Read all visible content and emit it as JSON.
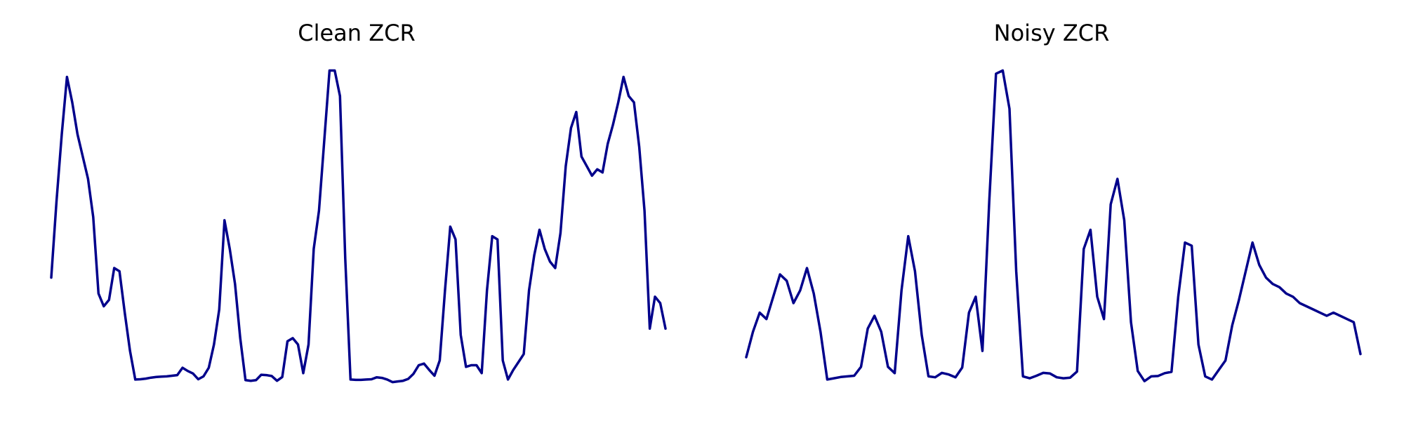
{
  "chart_data": [
    {
      "type": "line",
      "title": "Clean ZCR",
      "xlabel": "",
      "ylabel": "",
      "grid": false,
      "axes_visible": false,
      "color": "#00008b",
      "ylim": [
        0,
        1
      ],
      "series": [
        {
          "values": [
            0.34,
            0.58,
            0.79,
            0.97,
            0.89,
            0.79,
            0.72,
            0.65,
            0.53,
            0.29,
            0.25,
            0.27,
            0.37,
            0.36,
            0.23,
            0.11,
            0.02,
            0.021,
            0.023,
            0.026,
            0.028,
            0.029,
            0.03,
            0.032,
            0.034,
            0.057,
            0.047,
            0.039,
            0.021,
            0.03,
            0.057,
            0.13,
            0.24,
            0.52,
            0.43,
            0.32,
            0.15,
            0.018,
            0.016,
            0.018,
            0.035,
            0.034,
            0.031,
            0.016,
            0.028,
            0.14,
            0.15,
            0.13,
            0.04,
            0.13,
            0.43,
            0.55,
            0.77,
            0.99,
            0.99,
            0.91,
            0.4,
            0.02,
            0.019,
            0.019,
            0.02,
            0.021,
            0.027,
            0.025,
            0.02,
            0.012,
            0.014,
            0.016,
            0.022,
            0.038,
            0.065,
            0.07,
            0.05,
            0.032,
            0.08,
            0.3,
            0.5,
            0.46,
            0.16,
            0.06,
            0.065,
            0.065,
            0.04,
            0.3,
            0.47,
            0.46,
            0.08,
            0.02,
            0.05,
            0.075,
            0.1,
            0.3,
            0.41,
            0.49,
            0.43,
            0.39,
            0.37,
            0.48,
            0.69,
            0.81,
            0.86,
            0.72,
            0.69,
            0.66,
            0.68,
            0.67,
            0.76,
            0.82,
            0.89,
            0.97,
            0.91,
            0.89,
            0.75,
            0.55,
            0.18,
            0.28,
            0.26,
            0.18
          ]
        }
      ]
    },
    {
      "type": "line",
      "title": "Noisy ZCR",
      "xlabel": "",
      "ylabel": "",
      "grid": false,
      "axes_visible": false,
      "color": "#00008b",
      "ylim": [
        0,
        1
      ],
      "series": [
        {
          "values": [
            0.09,
            0.17,
            0.23,
            0.21,
            0.28,
            0.35,
            0.33,
            0.26,
            0.3,
            0.37,
            0.29,
            0.17,
            0.02,
            0.024,
            0.028,
            0.03,
            0.032,
            0.06,
            0.18,
            0.22,
            0.17,
            0.06,
            0.04,
            0.3,
            0.47,
            0.36,
            0.16,
            0.03,
            0.027,
            0.041,
            0.036,
            0.027,
            0.058,
            0.23,
            0.28,
            0.11,
            0.58,
            0.98,
            0.99,
            0.87,
            0.36,
            0.03,
            0.024,
            0.032,
            0.041,
            0.039,
            0.027,
            0.024,
            0.026,
            0.045,
            0.43,
            0.49,
            0.28,
            0.21,
            0.57,
            0.65,
            0.52,
            0.2,
            0.047,
            0.015,
            0.03,
            0.031,
            0.04,
            0.044,
            0.28,
            0.45,
            0.44,
            0.13,
            0.03,
            0.02,
            0.05,
            0.08,
            0.19,
            0.27,
            0.36,
            0.45,
            0.38,
            0.34,
            0.32,
            0.31,
            0.29,
            0.28,
            0.26,
            0.25,
            0.24,
            0.23,
            0.22,
            0.23,
            0.22,
            0.21,
            0.2,
            0.1
          ]
        }
      ]
    }
  ]
}
